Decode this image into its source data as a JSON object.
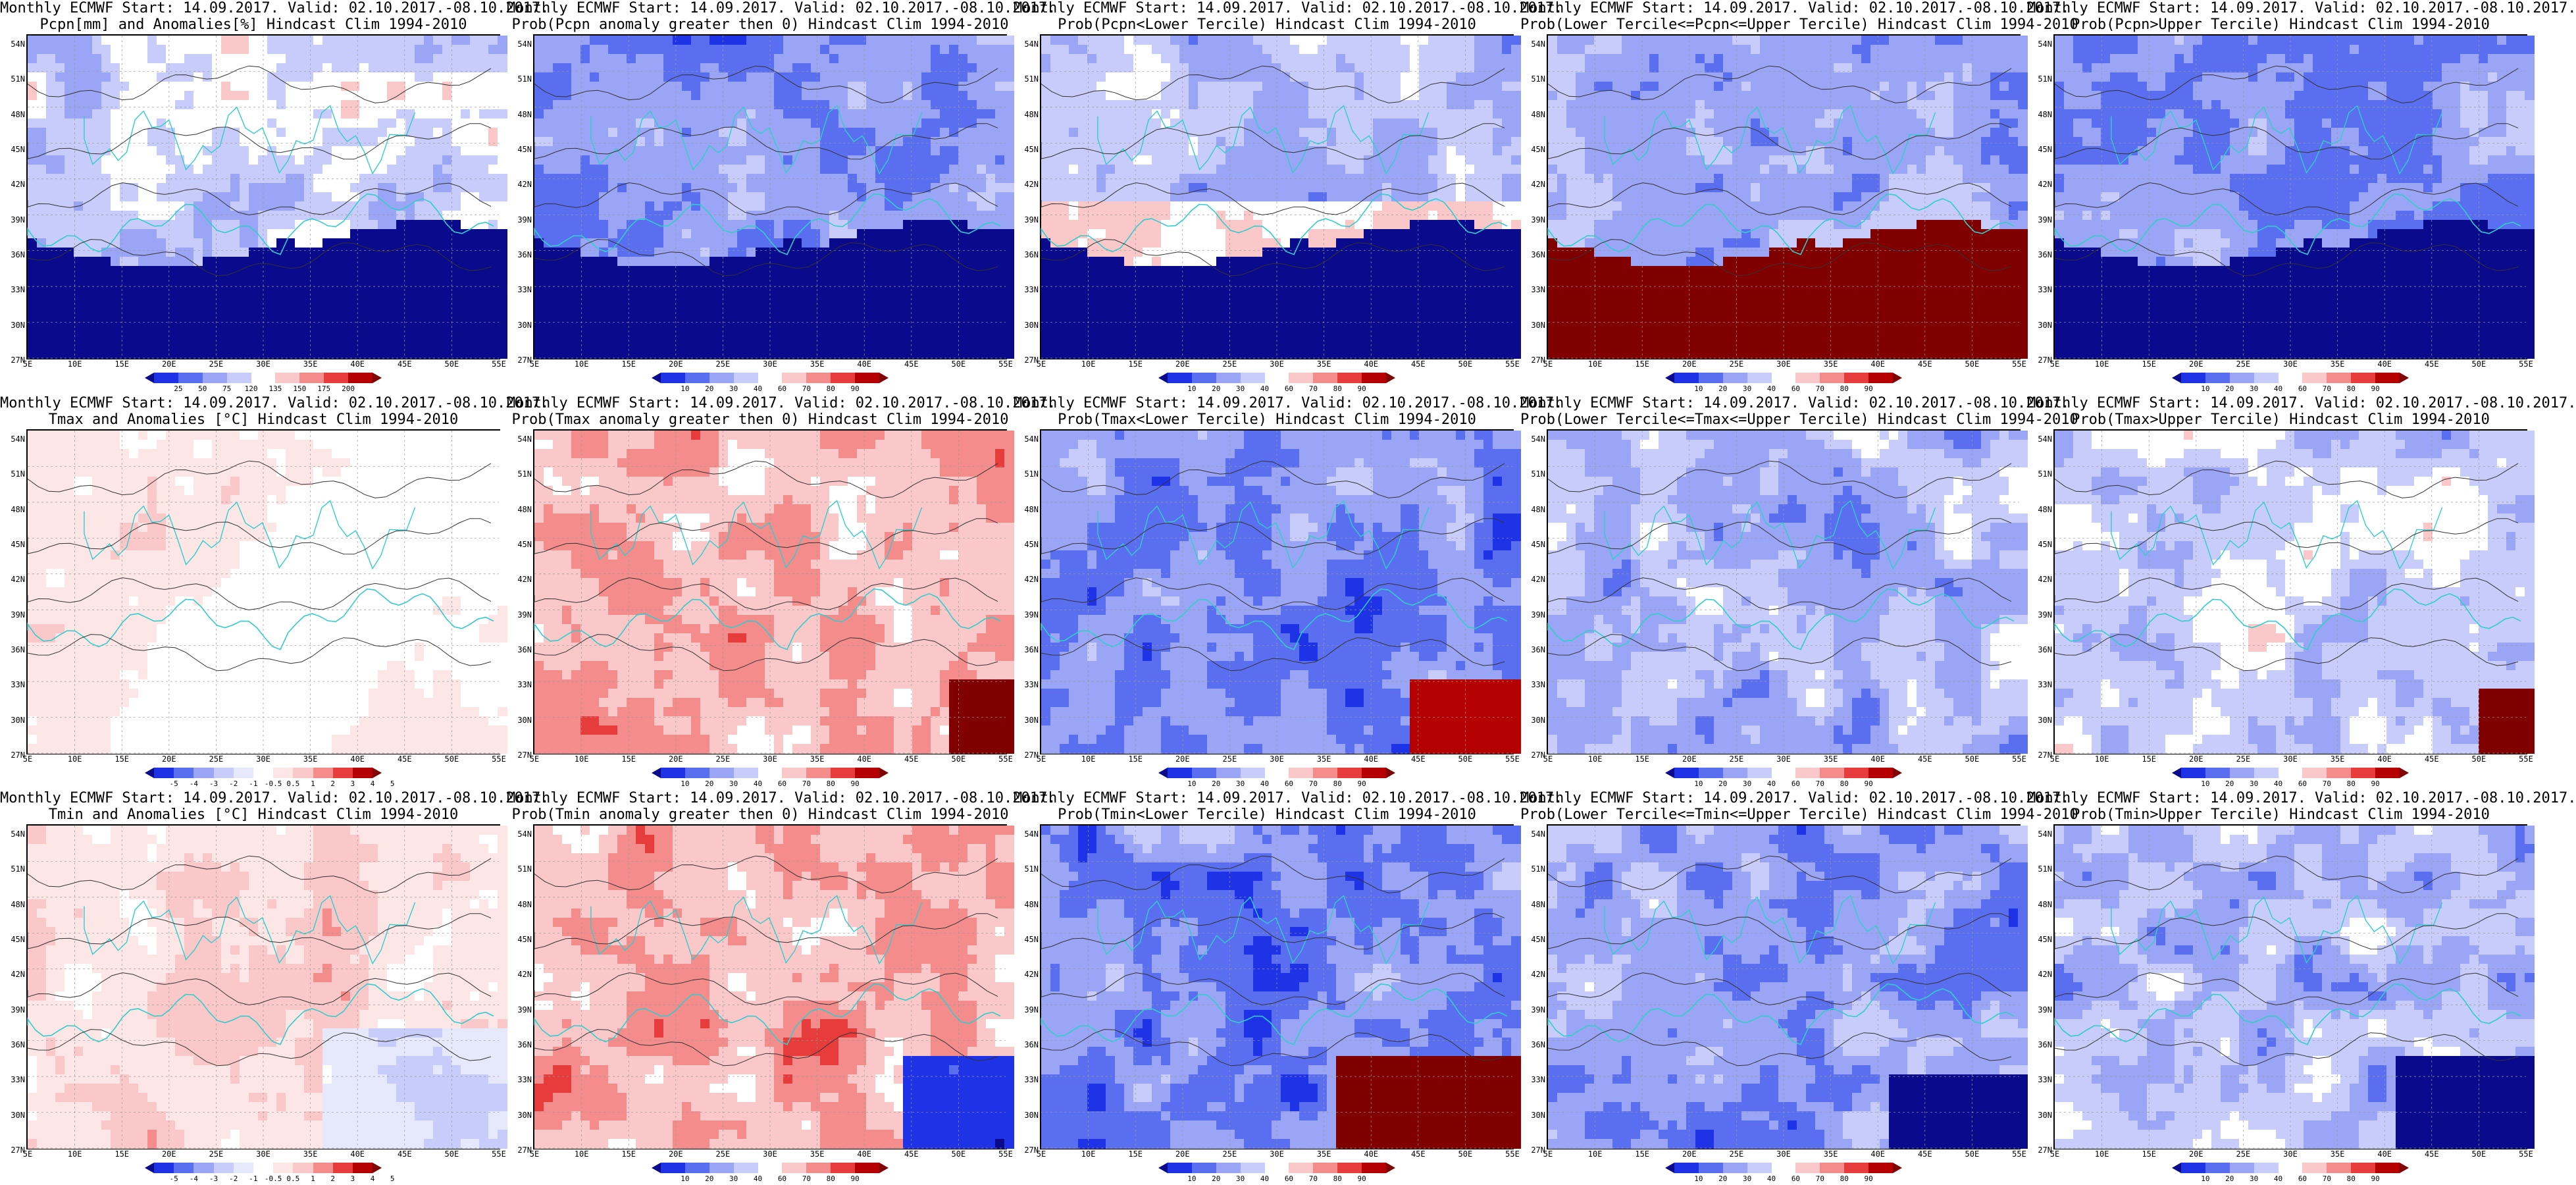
{
  "lat_labels": [
    "54N",
    "51N",
    "48N",
    "45N",
    "42N",
    "39N",
    "36N",
    "33N",
    "30N",
    "27N"
  ],
  "lon_labels": [
    "5E",
    "10E",
    "15E",
    "20E",
    "25E",
    "30E",
    "35E",
    "40E",
    "45E",
    "50E",
    "55E"
  ],
  "colorbars": {
    "pcpn": {
      "ticks": [
        "25",
        "50",
        "75",
        "120",
        "135",
        "150",
        "175",
        "200"
      ],
      "colors": [
        "#0a0a8c",
        "#1e32e6",
        "#5a6ef0",
        "#9aa5f5",
        "#c8ccfa",
        "#ffffff",
        "#fac8c8",
        "#f58c8c",
        "#e63c3c",
        "#b40000",
        "#800000"
      ]
    },
    "prob": {
      "ticks": [
        "10",
        "20",
        "30",
        "40",
        "60",
        "70",
        "80",
        "90"
      ],
      "colors": [
        "#0a0a8c",
        "#1e32e6",
        "#5a6ef0",
        "#9aa5f5",
        "#c8ccfa",
        "#ffffff",
        "#fac8c8",
        "#f58c8c",
        "#e63c3c",
        "#b40000",
        "#800000"
      ]
    },
    "temp": {
      "ticks": [
        "-5",
        "-4",
        "-3",
        "-2",
        "-1",
        "-0.5",
        "0.5",
        "1",
        "2",
        "3",
        "4",
        "5"
      ],
      "colors": [
        "#0a0a8c",
        "#1e32e6",
        "#5a6ef0",
        "#9aa5f5",
        "#c8ccfa",
        "#e6e8fc",
        "#ffffff",
        "#fce6e6",
        "#fac8c8",
        "#f58c8c",
        "#e63c3c",
        "#b40000",
        "#800000"
      ]
    }
  },
  "panels": [
    {
      "title_line1": "Monthly ECMWF Start: 14.09.2017. Valid: 02.10.2017.-08.10.2017.",
      "title_line2": "Pcpn[mm] and Anomalies[%] Hindcast Clim 1994-2010",
      "colorbar": "pcpn",
      "scheme": "pcpn_anom"
    },
    {
      "title_line1": "Monthly ECMWF Start: 14.09.2017. Valid: 02.10.2017.-08.10.2017.",
      "title_line2": "Prob(Pcpn anomaly greater then 0) Hindcast Clim 1994-2010",
      "colorbar": "prob",
      "scheme": "pcpn_gt0"
    },
    {
      "title_line1": "Monthly ECMWF Start: 14.09.2017. Valid: 02.10.2017.-08.10.2017.",
      "title_line2": "Prob(Pcpn<Lower Tercile) Hindcast Clim 1994-2010",
      "colorbar": "prob",
      "scheme": "pcpn_lower"
    },
    {
      "title_line1": "Monthly ECMWF Start: 14.09.2017. Valid: 02.10.2017.-08.10.2017.",
      "title_line2": "Prob(Lower Tercile<=Pcpn<=Upper Tercile) Hindcast Clim 1994-2010",
      "colorbar": "prob",
      "scheme": "pcpn_mid"
    },
    {
      "title_line1": "Monthly ECMWF Start: 14.09.2017. Valid: 02.10.2017.-08.10.2017.",
      "title_line2": "Prob(Pcpn>Upper Tercile) Hindcast Clim 1994-2010",
      "colorbar": "prob",
      "scheme": "pcpn_upper"
    },
    {
      "title_line1": "Monthly ECMWF Start: 14.09.2017. Valid: 02.10.2017.-08.10.2017.",
      "title_line2": "Tmax and Anomalies [°C] Hindcast Clim 1994-2010",
      "colorbar": "temp",
      "scheme": "tmax_anom"
    },
    {
      "title_line1": "Monthly ECMWF Start: 14.09.2017. Valid: 02.10.2017.-08.10.2017.",
      "title_line2": "Prob(Tmax anomaly greater then 0) Hindcast Clim 1994-2010",
      "colorbar": "prob",
      "scheme": "tmax_gt0"
    },
    {
      "title_line1": "Monthly ECMWF Start: 14.09.2017. Valid: 02.10.2017.-08.10.2017.",
      "title_line2": "Prob(Tmax<Lower Tercile) Hindcast Clim 1994-2010",
      "colorbar": "prob",
      "scheme": "tmax_lower"
    },
    {
      "title_line1": "Monthly ECMWF Start: 14.09.2017. Valid: 02.10.2017.-08.10.2017.",
      "title_line2": "Prob(Lower Tercile<=Tmax<=Upper Tercile) Hindcast Clim 1994-2010",
      "colorbar": "prob",
      "scheme": "tmax_mid"
    },
    {
      "title_line1": "Monthly ECMWF Start: 14.09.2017. Valid: 02.10.2017.-08.10.2017.",
      "title_line2": "Prob(Tmax>Upper Tercile) Hindcast Clim 1994-2010",
      "colorbar": "prob",
      "scheme": "tmax_upper"
    },
    {
      "title_line1": "Monthly ECMWF Start: 14.09.2017. Valid: 02.10.2017.-08.10.2017.",
      "title_line2": "Tmin and Anomalies [°C] Hindcast Clim 1994-2010",
      "colorbar": "temp",
      "scheme": "tmin_anom"
    },
    {
      "title_line1": "Monthly ECMWF Start: 14.09.2017. Valid: 02.10.2017.-08.10.2017.",
      "title_line2": "Prob(Tmin anomaly greater then 0) Hindcast Clim 1994-2010",
      "colorbar": "prob",
      "scheme": "tmin_gt0"
    },
    {
      "title_line1": "Monthly ECMWF Start: 14.09.2017. Valid: 02.10.2017.-08.10.2017.",
      "title_line2": "Prob(Tmin<Lower Tercile) Hindcast Clim 1994-2010",
      "colorbar": "prob",
      "scheme": "tmin_lower"
    },
    {
      "title_line1": "Monthly ECMWF Start: 14.09.2017. Valid: 02.10.2017.-08.10.2017.",
      "title_line2": "Prob(Lower Tercile<=Tmin<=Upper Tercile) Hindcast Clim 1994-2010",
      "colorbar": "prob",
      "scheme": "tmin_mid"
    },
    {
      "title_line1": "Monthly ECMWF Start: 14.09.2017. Valid: 02.10.2017.-08.10.2017.",
      "title_line2": "Prob(Tmin>Upper Tercile) Hindcast Clim 1994-2010",
      "colorbar": "prob",
      "scheme": "tmin_upper"
    }
  ]
}
